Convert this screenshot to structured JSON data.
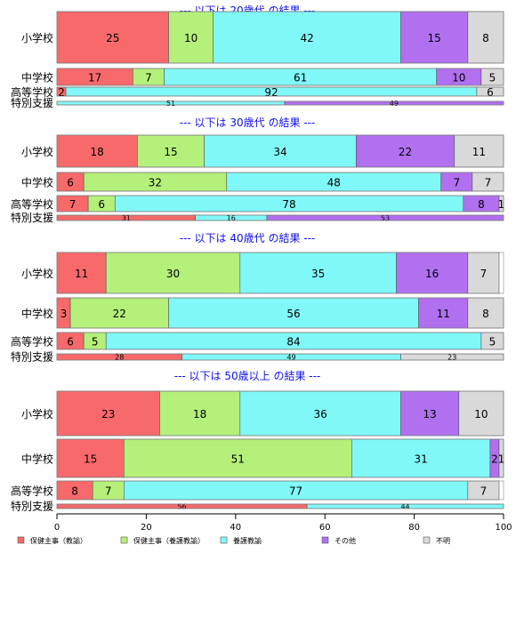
{
  "chart_data": {
    "type": "bar",
    "stacked": "horizontal-100",
    "xlim": [
      0,
      100
    ],
    "x_ticks": [
      "0",
      "20",
      "40",
      "60",
      "80",
      "100"
    ],
    "colors": [
      "#f8696b",
      "#b4f07a",
      "#80f8f8",
      "#b070f0",
      "#d9d9d9"
    ],
    "column_headers": [
      "保健主事（教諭）",
      "保健主...",
      "養護教諭",
      "その他",
      "不明"
    ],
    "legend": [
      "保健主事（教諭）",
      "保健主事（養護教諭）",
      "養護教諭",
      "その他",
      "不明"
    ],
    "panels": [
      {
        "title": "--- 以下は 20歳代 の結果 ---",
        "rows": [
          {
            "label": "小学校",
            "values": [
              25,
              10,
              42,
              15,
              8
            ]
          },
          {
            "label": "中学校",
            "values": [
              17,
              7,
              61,
              10,
              5
            ]
          },
          {
            "label": "高等学校",
            "values": [
              2,
              0,
              92,
              0,
              6
            ]
          },
          {
            "label": "特別支援",
            "values": [
              0,
              0,
              51,
              49,
              0
            ]
          }
        ]
      },
      {
        "title": "--- 以下は 30歳代 の結果 ---",
        "rows": [
          {
            "label": "小学校",
            "values": [
              18,
              15,
              34,
              22,
              11
            ]
          },
          {
            "label": "中学校",
            "values": [
              6,
              32,
              48,
              7,
              7
            ]
          },
          {
            "label": "高等学校",
            "values": [
              7,
              6,
              78,
              8,
              1
            ]
          },
          {
            "label": "特別支援",
            "values": [
              31,
              0,
              16,
              53,
              0
            ]
          }
        ]
      },
      {
        "title": "--- 以下は 40歳代 の結果 ---",
        "rows": [
          {
            "label": "小学校",
            "values": [
              11,
              30,
              35,
              16,
              7
            ]
          },
          {
            "label": "中学校",
            "values": [
              3,
              22,
              56,
              11,
              8
            ]
          },
          {
            "label": "高等学校",
            "values": [
              6,
              5,
              84,
              0,
              5
            ]
          },
          {
            "label": "特別支援",
            "values": [
              28,
              0,
              49,
              0,
              23
            ]
          }
        ]
      },
      {
        "title": "--- 以下は 50歳以上 の結果 ---",
        "rows": [
          {
            "label": "小学校",
            "values": [
              23,
              18,
              36,
              13,
              10
            ]
          },
          {
            "label": "中学校",
            "values": [
              15,
              51,
              31,
              2,
              1
            ]
          },
          {
            "label": "高等学校",
            "values": [
              8,
              7,
              77,
              0,
              7
            ]
          },
          {
            "label": "特別支援",
            "values": [
              56,
              0,
              44,
              0,
              0
            ]
          }
        ]
      }
    ]
  }
}
